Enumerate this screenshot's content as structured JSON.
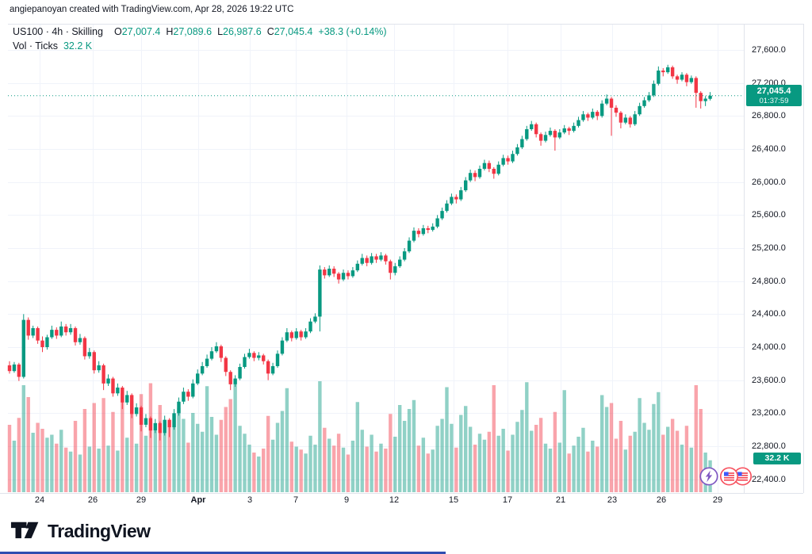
{
  "attribution": "angiepanoyan created with TradingView.com, Apr 28, 2026 19:22 UTC",
  "legend": {
    "title": "US100 · 4h · Skilling",
    "o_label": "O",
    "o_value": "27,007.4",
    "h_label": "H",
    "h_value": "27,089.6",
    "l_label": "L",
    "l_value": "26,987.6",
    "c_label": "C",
    "c_value": "27,045.4",
    "change": "+38.3 (+0.14%)",
    "vol_label": "Vol · Ticks",
    "vol_value": "32.2 K"
  },
  "last_price_badge": {
    "price": "27,045.4",
    "countdown": "01:37:59"
  },
  "volume_badge": "32.2 K",
  "price_axis": {
    "ticks": [
      "27,600.0",
      "27,200.0",
      "26,800.0",
      "26,400.0",
      "26,000.0",
      "25,600.0",
      "25,200.0",
      "24,800.0",
      "24,400.0",
      "24,000.0",
      "23,600.0",
      "23,200.0",
      "22,800.0",
      "22,400.0"
    ],
    "tick_prices": [
      27600,
      27200,
      26800,
      26400,
      26000,
      25600,
      25200,
      24800,
      24400,
      24000,
      23600,
      23200,
      22800,
      22400
    ]
  },
  "time_axis": {
    "labels": [
      {
        "text": "24",
        "x": 50
      },
      {
        "text": "26",
        "x": 117
      },
      {
        "text": "29",
        "x": 178
      },
      {
        "text": "Apr",
        "x": 250,
        "bold": true
      },
      {
        "text": "3",
        "x": 315
      },
      {
        "text": "7",
        "x": 373
      },
      {
        "text": "9",
        "x": 437
      },
      {
        "text": "12",
        "x": 497
      },
      {
        "text": "15",
        "x": 572
      },
      {
        "text": "17",
        "x": 640
      },
      {
        "text": "21",
        "x": 707
      },
      {
        "text": "23",
        "x": 772
      },
      {
        "text": "26",
        "x": 834
      },
      {
        "text": "29",
        "x": 905
      }
    ]
  },
  "events": [
    {
      "type": "economic-event",
      "icon": "lightning",
      "color": "#7e57c2"
    },
    {
      "type": "economic-event",
      "icon": "us-flag",
      "color": "#f7525f"
    },
    {
      "type": "economic-event",
      "icon": "us-flag",
      "color": "#f7525f"
    }
  ],
  "logo": {
    "text": "TradingView"
  },
  "colors": {
    "up": "#089981",
    "down": "#f23645",
    "vol_up": "rgba(8,153,129,0.45)",
    "vol_down": "rgba(242,54,69,0.45)",
    "accent": "#089981",
    "text": "#131722",
    "grid": "#f0f3fa",
    "frame": "#e0e3eb",
    "badge": "#089981"
  },
  "chart_data": {
    "type": "candlestick",
    "title": "US100 · 4h · Skilling",
    "symbol": "US100",
    "interval": "4h",
    "broker": "Skilling",
    "last": {
      "open": 27007.4,
      "high": 27089.6,
      "low": 26987.6,
      "close": 27045.4,
      "change": 38.3,
      "change_pct": 0.14,
      "volume_ticks": "32.2 K",
      "countdown": "01:37:59"
    },
    "current_price": 27045.4,
    "y_range": [
      22400,
      27600
    ],
    "y_ticks_step": 400,
    "grid": true,
    "legend_position": "top-left",
    "x_labels": [
      "24",
      "26",
      "29",
      "Apr",
      "3",
      "7",
      "9",
      "12",
      "15",
      "17",
      "21",
      "23",
      "26",
      "29"
    ],
    "volume_unit": "K ticks",
    "candles_format": [
      "open",
      "high",
      "low",
      "close",
      "volume_K"
    ],
    "candles": [
      [
        23780,
        23830,
        23680,
        23710,
        68
      ],
      [
        23710,
        23820,
        23690,
        23790,
        52
      ],
      [
        23790,
        23810,
        23590,
        23640,
        75
      ],
      [
        23640,
        24400,
        23620,
        24330,
        108
      ],
      [
        24330,
        24360,
        24090,
        24140,
        96
      ],
      [
        24140,
        24260,
        24110,
        24230,
        60
      ],
      [
        24230,
        24250,
        24040,
        24080,
        70
      ],
      [
        24080,
        24130,
        23940,
        24000,
        64
      ],
      [
        24000,
        24150,
        23970,
        24120,
        55
      ],
      [
        24120,
        24260,
        24100,
        24210,
        58
      ],
      [
        24210,
        24240,
        24100,
        24140,
        49
      ],
      [
        24140,
        24310,
        24120,
        24250,
        63
      ],
      [
        24250,
        24280,
        24140,
        24180,
        45
      ],
      [
        24180,
        24280,
        24150,
        24230,
        41
      ],
      [
        24230,
        24250,
        24020,
        24060,
        72
      ],
      [
        24060,
        24160,
        24030,
        24110,
        38
      ],
      [
        24110,
        24130,
        23850,
        23890,
        84
      ],
      [
        23890,
        23990,
        23860,
        23940,
        46
      ],
      [
        23940,
        23960,
        23680,
        23720,
        90
      ],
      [
        23720,
        23830,
        23690,
        23780,
        44
      ],
      [
        23780,
        23800,
        23480,
        23560,
        95
      ],
      [
        23560,
        23670,
        23530,
        23620,
        47
      ],
      [
        23620,
        23640,
        23400,
        23440,
        81
      ],
      [
        23440,
        23560,
        23410,
        23510,
        42
      ],
      [
        23510,
        23530,
        23250,
        23330,
        104
      ],
      [
        23330,
        23470,
        23300,
        23420,
        55
      ],
      [
        23420,
        23440,
        23140,
        23190,
        92
      ],
      [
        23190,
        23320,
        23160,
        23270,
        49
      ],
      [
        23270,
        23290,
        22980,
        23060,
        99
      ],
      [
        23060,
        23190,
        23030,
        23140,
        57
      ],
      [
        23140,
        23160,
        22900,
        22990,
        110
      ],
      [
        22990,
        23130,
        22960,
        23080,
        62
      ],
      [
        23080,
        23100,
        22870,
        22960,
        88
      ],
      [
        22960,
        23170,
        22930,
        23120,
        71
      ],
      [
        23120,
        23140,
        22910,
        23030,
        66
      ],
      [
        23030,
        23250,
        23000,
        23200,
        78
      ],
      [
        23200,
        23390,
        23170,
        23340,
        85
      ],
      [
        23340,
        23510,
        23310,
        23460,
        74
      ],
      [
        23460,
        23490,
        23350,
        23400,
        50
      ],
      [
        23400,
        23610,
        23380,
        23560,
        80
      ],
      [
        23560,
        23730,
        23540,
        23680,
        69
      ],
      [
        23680,
        23820,
        23660,
        23770,
        61
      ],
      [
        23770,
        23910,
        23750,
        23860,
        107
      ],
      [
        23860,
        24000,
        23840,
        23950,
        76
      ],
      [
        23950,
        24060,
        23930,
        24010,
        58
      ],
      [
        24010,
        24030,
        23820,
        23870,
        73
      ],
      [
        23870,
        23890,
        23650,
        23700,
        86
      ],
      [
        23700,
        23720,
        23480,
        23550,
        94
      ],
      [
        23550,
        23660,
        23520,
        23620,
        109
      ],
      [
        23620,
        23800,
        23600,
        23760,
        67
      ],
      [
        23760,
        23920,
        23740,
        23880,
        59
      ],
      [
        23880,
        23980,
        23860,
        23930,
        48
      ],
      [
        23930,
        23950,
        23830,
        23870,
        40
      ],
      [
        23870,
        23940,
        23840,
        23900,
        36
      ],
      [
        23900,
        23920,
        23790,
        23830,
        44
      ],
      [
        23830,
        23850,
        23600,
        23680,
        77
      ],
      [
        23680,
        23810,
        23660,
        23770,
        53
      ],
      [
        23770,
        23960,
        23750,
        23920,
        70
      ],
      [
        23920,
        24120,
        23900,
        24080,
        82
      ],
      [
        24080,
        24230,
        24060,
        24180,
        105
      ],
      [
        24180,
        24200,
        24070,
        24110,
        51
      ],
      [
        24110,
        24230,
        24090,
        24190,
        46
      ],
      [
        24190,
        24210,
        24080,
        24120,
        43
      ],
      [
        24120,
        24230,
        24100,
        24190,
        39
      ],
      [
        24190,
        24350,
        24170,
        24310,
        57
      ],
      [
        24310,
        24410,
        24290,
        24370,
        48
      ],
      [
        24370,
        24990,
        24190,
        24940,
        112
      ],
      [
        24940,
        24970,
        24830,
        24870,
        65
      ],
      [
        24870,
        24990,
        24850,
        24950,
        54
      ],
      [
        24950,
        24980,
        24850,
        24890,
        47
      ],
      [
        24890,
        24910,
        24770,
        24820,
        59
      ],
      [
        24820,
        24940,
        24800,
        24900,
        45
      ],
      [
        24900,
        24930,
        24820,
        24860,
        38
      ],
      [
        24860,
        24970,
        24840,
        24930,
        52
      ],
      [
        24930,
        25050,
        24910,
        25010,
        91
      ],
      [
        25010,
        25130,
        24990,
        25080,
        63
      ],
      [
        25080,
        25110,
        24980,
        25020,
        46
      ],
      [
        25020,
        25140,
        25000,
        25100,
        58
      ],
      [
        25100,
        25130,
        25020,
        25060,
        41
      ],
      [
        25060,
        25150,
        25040,
        25110,
        49
      ],
      [
        25110,
        25130,
        25000,
        25040,
        44
      ],
      [
        25040,
        25060,
        24820,
        24900,
        79
      ],
      [
        24900,
        25020,
        24870,
        24980,
        56
      ],
      [
        24980,
        25100,
        24960,
        25060,
        88
      ],
      [
        25060,
        25200,
        25040,
        25160,
        72
      ],
      [
        25160,
        25330,
        25140,
        25290,
        84
      ],
      [
        25290,
        25450,
        25270,
        25410,
        93
      ],
      [
        25410,
        25440,
        25330,
        25370,
        47
      ],
      [
        25370,
        25480,
        25350,
        25440,
        55
      ],
      [
        25440,
        25470,
        25380,
        25420,
        39
      ],
      [
        25420,
        25500,
        25400,
        25460,
        43
      ],
      [
        25460,
        25600,
        25440,
        25560,
        67
      ],
      [
        25560,
        25690,
        25540,
        25650,
        74
      ],
      [
        25650,
        25780,
        25630,
        25740,
        106
      ],
      [
        25740,
        25860,
        25720,
        25820,
        69
      ],
      [
        25820,
        25850,
        25740,
        25790,
        45
      ],
      [
        25790,
        25940,
        25770,
        25900,
        78
      ],
      [
        25900,
        26060,
        25880,
        26020,
        87
      ],
      [
        26020,
        26150,
        26000,
        26110,
        66
      ],
      [
        26110,
        26140,
        26010,
        26060,
        48
      ],
      [
        26060,
        26200,
        26040,
        26160,
        59
      ],
      [
        26160,
        26270,
        26140,
        26230,
        53
      ],
      [
        26230,
        26260,
        26120,
        26160,
        61
      ],
      [
        26160,
        26180,
        26040,
        26100,
        108
      ],
      [
        26100,
        26250,
        26080,
        26210,
        57
      ],
      [
        26210,
        26330,
        26190,
        26290,
        64
      ],
      [
        26290,
        26320,
        26210,
        26250,
        42
      ],
      [
        26250,
        26380,
        26230,
        26340,
        58
      ],
      [
        26340,
        26460,
        26320,
        26420,
        71
      ],
      [
        26420,
        26560,
        26400,
        26520,
        83
      ],
      [
        26520,
        26680,
        26500,
        26640,
        111
      ],
      [
        26640,
        26740,
        26620,
        26700,
        62
      ],
      [
        26700,
        26720,
        26540,
        26580,
        68
      ],
      [
        26580,
        26600,
        26440,
        26500,
        75
      ],
      [
        26500,
        26610,
        26480,
        26570,
        49
      ],
      [
        26570,
        26660,
        26550,
        26620,
        44
      ],
      [
        26620,
        26640,
        26380,
        26540,
        81
      ],
      [
        26540,
        26640,
        26520,
        26600,
        50
      ],
      [
        26600,
        26690,
        26580,
        26650,
        103
      ],
      [
        26650,
        26670,
        26570,
        26620,
        39
      ],
      [
        26620,
        26720,
        26600,
        26680,
        47
      ],
      [
        26680,
        26790,
        26660,
        26750,
        56
      ],
      [
        26750,
        26860,
        26730,
        26820,
        65
      ],
      [
        26820,
        26840,
        26740,
        26780,
        41
      ],
      [
        26780,
        26890,
        26760,
        26850,
        52
      ],
      [
        26850,
        26870,
        26750,
        26800,
        46
      ],
      [
        26800,
        26990,
        26780,
        26950,
        98
      ],
      [
        26950,
        27060,
        26930,
        27010,
        86
      ],
      [
        27010,
        27030,
        26560,
        26900,
        90
      ],
      [
        26900,
        26930,
        26790,
        26840,
        54
      ],
      [
        26840,
        26860,
        26650,
        26720,
        72
      ],
      [
        26720,
        26820,
        26700,
        26780,
        43
      ],
      [
        26780,
        26800,
        26660,
        26700,
        57
      ],
      [
        26700,
        26860,
        26680,
        26820,
        61
      ],
      [
        26820,
        26960,
        26800,
        26920,
        95
      ],
      [
        26920,
        27030,
        26900,
        26990,
        70
      ],
      [
        26990,
        27090,
        26970,
        27050,
        63
      ],
      [
        27050,
        27230,
        27030,
        27190,
        89
      ],
      [
        27190,
        27400,
        27170,
        27350,
        101
      ],
      [
        27350,
        27380,
        27280,
        27330,
        58
      ],
      [
        27330,
        27420,
        27310,
        27390,
        66
      ],
      [
        27390,
        27410,
        27250,
        27280,
        74
      ],
      [
        27280,
        27300,
        27190,
        27240,
        62
      ],
      [
        27240,
        27330,
        27220,
        27300,
        48
      ],
      [
        27300,
        27320,
        27160,
        27210,
        67
      ],
      [
        27210,
        27290,
        27190,
        27260,
        45
      ],
      [
        27260,
        27280,
        26900,
        27080,
        108
      ],
      [
        27080,
        27100,
        26890,
        26980,
        84
      ],
      [
        26980,
        27040,
        26920,
        27010,
        40
      ],
      [
        27007.4,
        27089.6,
        26987.6,
        27045.4,
        32.2
      ]
    ]
  }
}
